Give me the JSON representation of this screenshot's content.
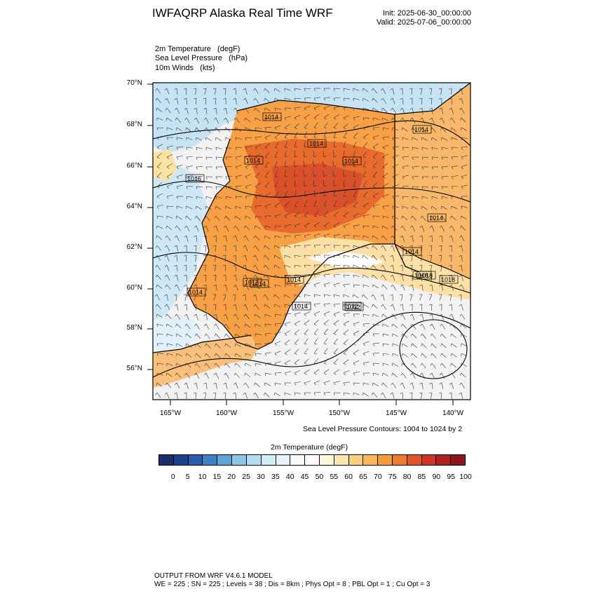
{
  "header": {
    "title": "IWFAQRP Alaska Real Time WRF",
    "init": "Init: 2025-06-30_00:00:00",
    "valid": "Valid: 2025-07-06_00:00:00"
  },
  "fields": [
    "2m Temperature   (degF)",
    "Sea Level Pressure   (hPa)",
    "10m Winds   (kts)"
  ],
  "axes": {
    "lat_labels": [
      "70°N",
      "68°N",
      "66°N",
      "64°N",
      "62°N",
      "60°N",
      "58°N",
      "56°N"
    ],
    "lon_labels": [
      "165°W",
      "160°W",
      "155°W",
      "150°W",
      "145°W",
      "140°W"
    ]
  },
  "contours": {
    "note": "Sea Level Pressure Contours: 1004 to 1024 by 2",
    "labels": [
      "1014",
      "1014",
      "1014",
      "1014",
      "1014",
      "1016",
      "1014",
      "1014",
      "1014",
      "1012",
      "1014",
      "1014",
      "1018",
      "1014",
      "1012",
      "1012",
      "1018",
      "1018"
    ]
  },
  "colorbar": {
    "title": "2m Temperature  (degF)",
    "colors": [
      "#1b2d6b",
      "#203f8c",
      "#2b5fae",
      "#3b7fc4",
      "#5fa4d9",
      "#8cc6ea",
      "#b2dcf4",
      "#d2ebf8",
      "#e8f5fb",
      "#f7fbfd",
      "#ffffff",
      "#fff6dc",
      "#fde5b0",
      "#fcd083",
      "#fbb853",
      "#f79c3b",
      "#ef7a2f",
      "#e3562a",
      "#cf3426",
      "#b01f22",
      "#8c1519"
    ],
    "labels": [
      "0",
      "5",
      "10",
      "15",
      "20",
      "25",
      "30",
      "35",
      "40",
      "45",
      "50",
      "55",
      "60",
      "65",
      "70",
      "75",
      "80",
      "85",
      "90",
      "95",
      "100"
    ]
  },
  "footer": {
    "line1": "OUTPUT FROM WRF V4.6.1 MODEL",
    "line2": "WE = 225 ; SN = 225 ; Levels = 38 ; Dis = 8km ; Phys Opt = 8 ; PBL Opt = 1 ; Cu Opt = 3"
  }
}
